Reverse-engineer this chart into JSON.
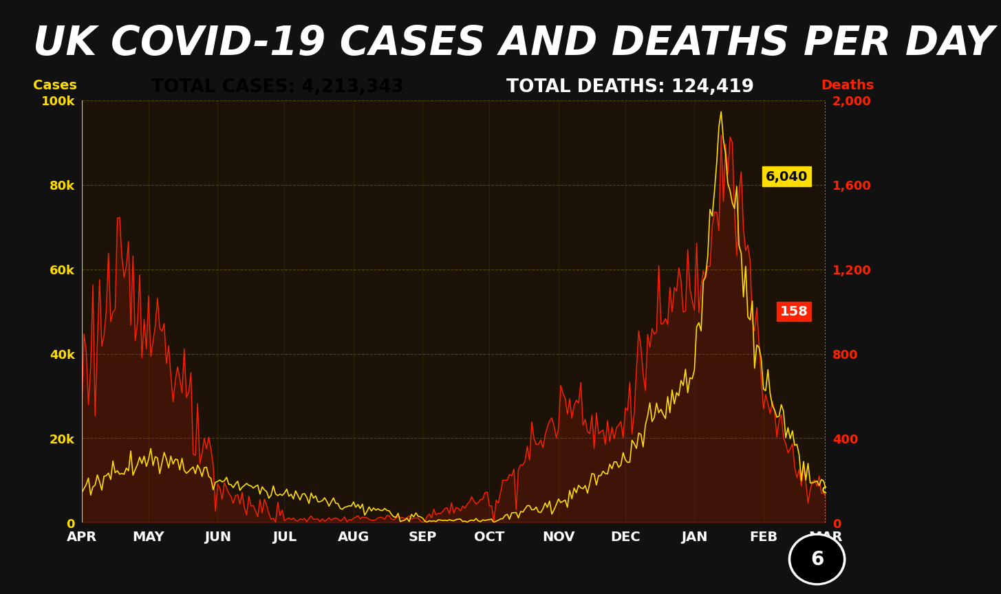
{
  "title": "UK COVID-19 CASES AND DEATHS PER DAY",
  "total_cases_label": "TOTAL CASES: 4,213,343",
  "total_deaths_label": "TOTAL DEATHS: 124,419",
  "cases_label": "Cases",
  "deaths_label": "Deaths",
  "last_cases_value": "6,040",
  "last_deaths_value": "158",
  "circle_label": "6",
  "bg_color": "#111111",
  "chart_bg_color": "#1c1208",
  "title_color": "#ffffff",
  "title_bg": "#000000",
  "cases_color": "#ff2200",
  "deaths_color": "#ffdd00",
  "grid_color_h": "#555500",
  "grid_color_v": "#333300",
  "x_tick_labels": [
    "APR",
    "MAY",
    "JUN",
    "JUL",
    "AUG",
    "SEP",
    "OCT",
    "NOV",
    "DEC",
    "JAN",
    "FEB",
    "MAR"
  ],
  "ylim_cases": [
    0,
    100000
  ],
  "ylim_deaths": [
    0,
    2000
  ],
  "yticks_cases": [
    0,
    20000,
    40000,
    60000,
    80000,
    100000
  ],
  "yticks_deaths": [
    0,
    400,
    800,
    1200,
    1600,
    2000
  ],
  "ytick_labels_cases": [
    "0",
    "20k",
    "40k",
    "60k",
    "80k",
    "100k"
  ],
  "ytick_labels_deaths": [
    "0",
    "400",
    "800",
    "1,200",
    "1,600",
    "2,000"
  ],
  "month_ticks": [
    0,
    30,
    61,
    91,
    122,
    153,
    183,
    214,
    244,
    275,
    306,
    334
  ],
  "n_days": 335
}
